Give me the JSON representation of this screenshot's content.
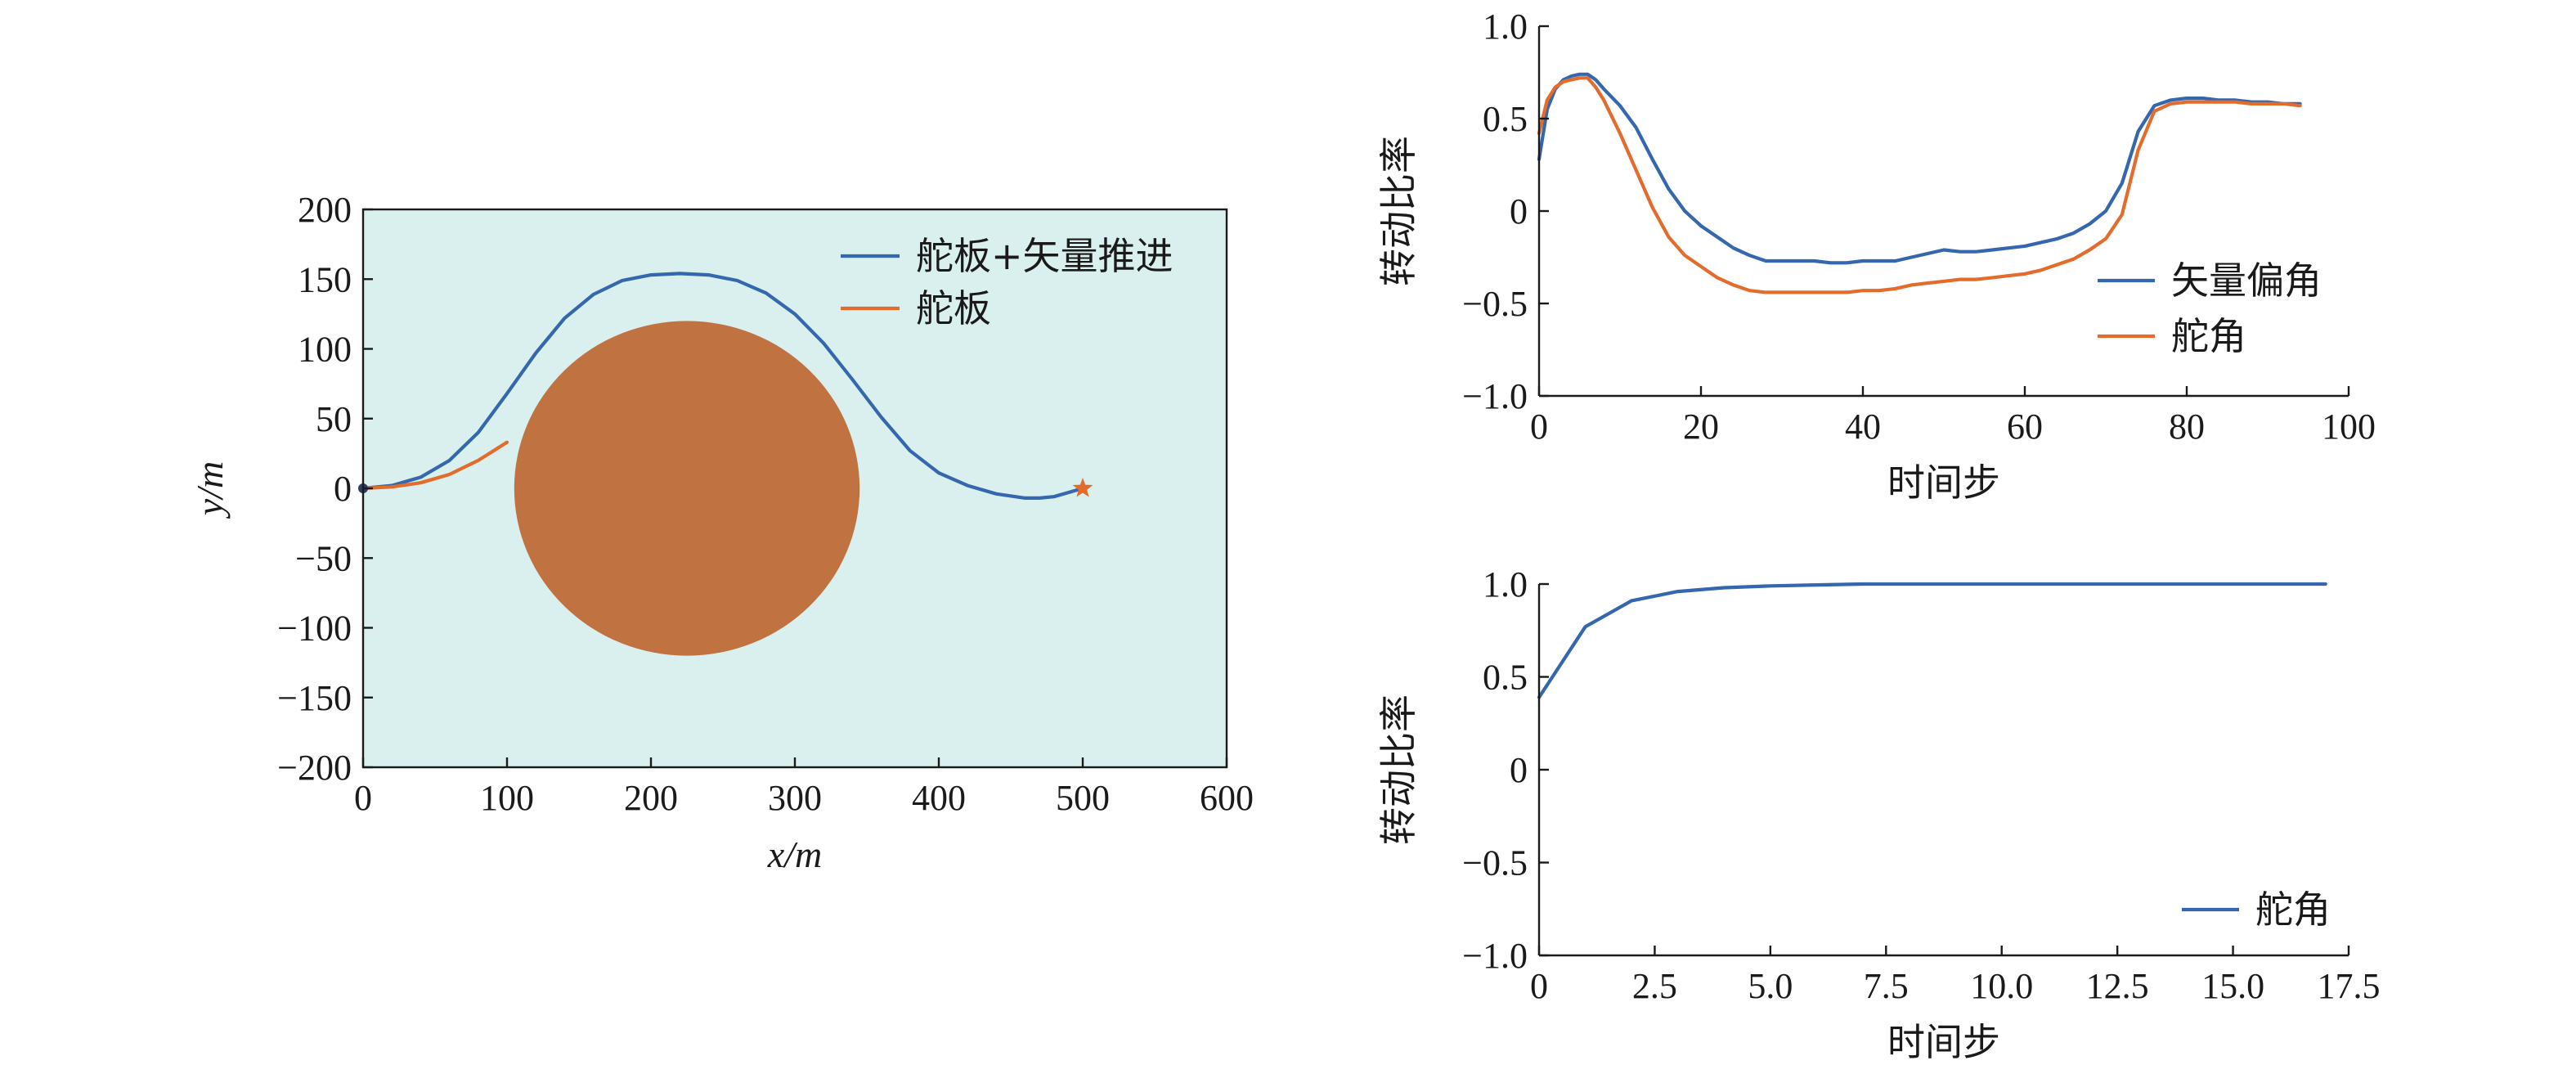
{
  "chart_data": [
    {
      "type": "line",
      "plot_background": "#d9f0ee",
      "xlabel": "x/m",
      "ylabel": "y/m",
      "xlim": [
        0,
        600
      ],
      "ylim": [
        -200,
        200
      ],
      "xticks": [
        0,
        100,
        200,
        300,
        400,
        500,
        600
      ],
      "yticks": [
        -200,
        -150,
        -100,
        -50,
        0,
        50,
        100,
        150,
        200
      ],
      "xtick_labels": [
        "0",
        "100",
        "200",
        "300",
        "400",
        "500",
        "600"
      ],
      "ytick_labels": [
        "−200",
        "−150",
        "−100",
        "−50",
        "0",
        "50",
        "100",
        "150",
        "200"
      ],
      "legend_position": "top-right",
      "obstacle": {
        "shape": "circle",
        "center": [
          225,
          0
        ],
        "radius": 120,
        "color": "#c07340"
      },
      "start": {
        "x": 0,
        "y": 0,
        "color": "#2c3e66"
      },
      "goal": {
        "x": 500,
        "y": 0,
        "marker": "star",
        "color": "#e36c2c"
      },
      "series": [
        {
          "name": "舵板+矢量推进",
          "color": "#3467ae",
          "x": [
            0,
            20,
            40,
            60,
            80,
            100,
            120,
            140,
            160,
            180,
            200,
            220,
            240,
            260,
            280,
            300,
            320,
            340,
            360,
            380,
            400,
            420,
            440,
            460,
            470,
            480,
            490,
            500
          ],
          "y": [
            0,
            2,
            8,
            20,
            40,
            68,
            97,
            122,
            139,
            149,
            153,
            154,
            153,
            149,
            140,
            125,
            104,
            78,
            51,
            27,
            11,
            2,
            -4,
            -7,
            -7,
            -6,
            -3,
            0
          ]
        },
        {
          "name": "舵板",
          "color": "#e36c2c",
          "x": [
            0,
            20,
            40,
            60,
            80,
            100
          ],
          "y": [
            0,
            1,
            4,
            10,
            20,
            33
          ]
        }
      ]
    },
    {
      "type": "line",
      "xlabel": "时间步",
      "ylabel": "转动比率",
      "xlim": [
        0,
        100
      ],
      "ylim": [
        -1.0,
        1.0
      ],
      "xticks": [
        0,
        20,
        40,
        60,
        80,
        100
      ],
      "yticks": [
        -1.0,
        -0.5,
        0,
        0.5,
        1.0
      ],
      "xtick_labels": [
        "0",
        "20",
        "40",
        "60",
        "80",
        "100"
      ],
      "ytick_labels": [
        "−1.0",
        "−0.5",
        "0",
        "0.5",
        "1.0"
      ],
      "legend_position": "right",
      "series": [
        {
          "name": "矢量偏角",
          "color": "#3467ae",
          "x": [
            0,
            1,
            2,
            3,
            4,
            5,
            6,
            7,
            8,
            10,
            12,
            14,
            16,
            18,
            20,
            22,
            24,
            26,
            28,
            30,
            32,
            34,
            36,
            38,
            40,
            42,
            44,
            46,
            48,
            50,
            52,
            54,
            56,
            58,
            60,
            62,
            64,
            66,
            68,
            70,
            72,
            74,
            76,
            78,
            80,
            82,
            84,
            86,
            88,
            90,
            92,
            94
          ],
          "y": [
            0.28,
            0.55,
            0.66,
            0.71,
            0.73,
            0.74,
            0.74,
            0.71,
            0.66,
            0.57,
            0.45,
            0.28,
            0.12,
            0.0,
            -0.08,
            -0.14,
            -0.2,
            -0.24,
            -0.27,
            -0.27,
            -0.27,
            -0.27,
            -0.28,
            -0.28,
            -0.27,
            -0.27,
            -0.27,
            -0.25,
            -0.23,
            -0.21,
            -0.22,
            -0.22,
            -0.21,
            -0.2,
            -0.19,
            -0.17,
            -0.15,
            -0.12,
            -0.07,
            0.0,
            0.15,
            0.43,
            0.57,
            0.6,
            0.61,
            0.61,
            0.6,
            0.6,
            0.59,
            0.59,
            0.58,
            0.58
          ]
        },
        {
          "name": "舵角",
          "color": "#e36c2c",
          "x": [
            0,
            1,
            2,
            3,
            4,
            5,
            6,
            7,
            8,
            10,
            12,
            14,
            16,
            18,
            20,
            22,
            24,
            26,
            28,
            30,
            32,
            34,
            36,
            38,
            40,
            42,
            44,
            46,
            48,
            50,
            52,
            54,
            56,
            58,
            60,
            62,
            64,
            66,
            68,
            70,
            72,
            74,
            76,
            78,
            80,
            82,
            84,
            86,
            88,
            90,
            92,
            94
          ],
          "y": [
            0.42,
            0.6,
            0.67,
            0.7,
            0.71,
            0.72,
            0.72,
            0.67,
            0.6,
            0.42,
            0.22,
            0.02,
            -0.14,
            -0.24,
            -0.3,
            -0.36,
            -0.4,
            -0.43,
            -0.44,
            -0.44,
            -0.44,
            -0.44,
            -0.44,
            -0.44,
            -0.43,
            -0.43,
            -0.42,
            -0.4,
            -0.39,
            -0.38,
            -0.37,
            -0.37,
            -0.36,
            -0.35,
            -0.34,
            -0.32,
            -0.29,
            -0.26,
            -0.21,
            -0.15,
            -0.02,
            0.33,
            0.54,
            0.58,
            0.59,
            0.59,
            0.59,
            0.59,
            0.58,
            0.58,
            0.58,
            0.57
          ]
        }
      ]
    },
    {
      "type": "line",
      "xlabel": "时间步",
      "ylabel": "转动比率",
      "xlim": [
        0,
        17.5
      ],
      "ylim": [
        -1.0,
        1.0
      ],
      "xticks": [
        0,
        2.5,
        5.0,
        7.5,
        10.0,
        12.5,
        15.0,
        17.5
      ],
      "yticks": [
        -1.0,
        -0.5,
        0,
        0.5,
        1.0
      ],
      "xtick_labels": [
        "0",
        "2.5",
        "5.0",
        "7.5",
        "10.0",
        "12.5",
        "15.0",
        "17.5"
      ],
      "ytick_labels": [
        "−1.0",
        "−0.5",
        "0",
        "0.5",
        "1.0"
      ],
      "legend_position": "bottom-right",
      "series": [
        {
          "name": "舵角",
          "color": "#3467ae",
          "x": [
            0,
            1,
            2,
            3,
            4,
            5,
            6,
            7,
            8,
            9,
            10,
            11,
            12,
            13,
            14,
            15,
            16,
            17
          ],
          "y": [
            0.39,
            0.77,
            0.91,
            0.96,
            0.98,
            0.99,
            0.995,
            1.0,
            1.0,
            1.0,
            1.0,
            1.0,
            1.0,
            1.0,
            1.0,
            1.0,
            1.0,
            1.0
          ]
        }
      ]
    }
  ]
}
